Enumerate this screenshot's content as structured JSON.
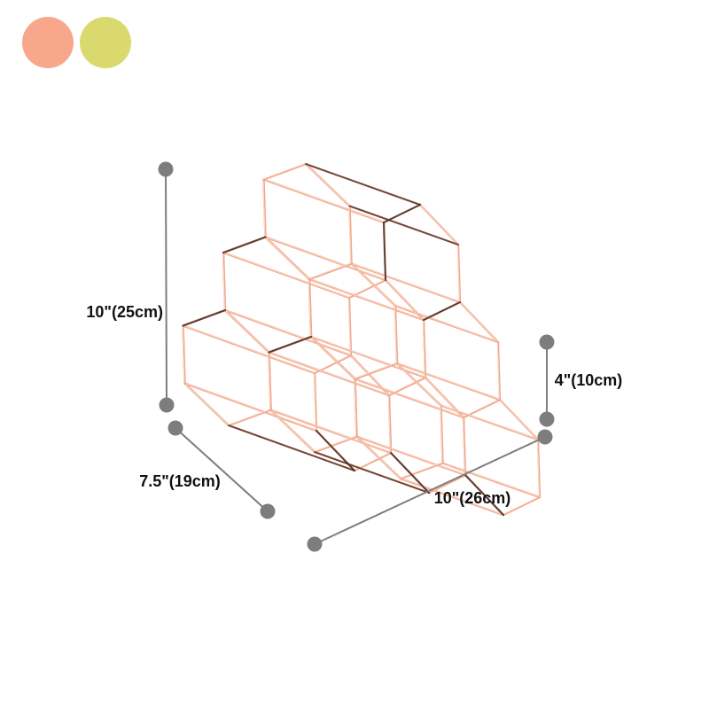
{
  "product": {
    "name": "hexagonal honeycomb wine rack",
    "style": "rose gold wireframe",
    "cells": 6,
    "rows": [
      3,
      2,
      1
    ],
    "wire_color": "#efa78c",
    "wire_highlight": "#ffe4d6",
    "wire_shadow": "#45291f"
  },
  "color_swatches": [
    {
      "name": "peach-pink",
      "color": "#F8A78D"
    },
    {
      "name": "yellow-green",
      "color": "#D9D96E"
    }
  ],
  "dimensions": {
    "height": "10\"(25cm)",
    "depth": "7.5\"(19cm)",
    "width": "10\"(26cm)",
    "cell": "4\"(10cm)"
  },
  "annotation": {
    "line_color": "#7d7d7d",
    "dot_color": "#7d7d7d",
    "text_color": "#111111"
  }
}
